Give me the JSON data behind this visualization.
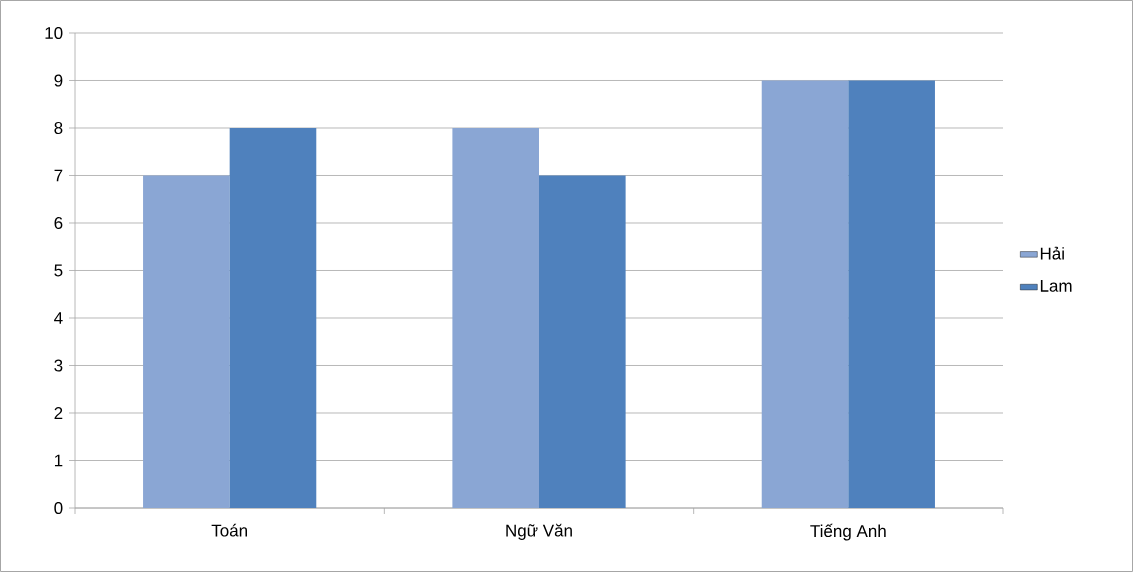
{
  "chart_data": {
    "type": "bar",
    "categories": [
      "Toán",
      "Ngữ Văn",
      "Tiếng Anh"
    ],
    "series": [
      {
        "name": "Hải",
        "color": "#8aa6d4",
        "values": [
          7,
          8,
          9
        ]
      },
      {
        "name": "Lam",
        "color": "#4f81bd",
        "values": [
          8,
          7,
          9
        ]
      }
    ],
    "ylim": [
      0,
      10
    ],
    "yticks": [
      0,
      1,
      2,
      3,
      4,
      5,
      6,
      7,
      8,
      9,
      10
    ],
    "grid": "y",
    "legend": "right"
  }
}
